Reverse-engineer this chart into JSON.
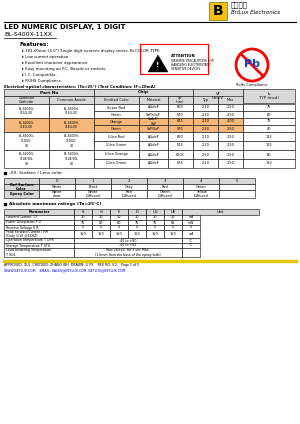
{
  "title": "LED NUMERIC DISPLAY, 1 DIGIT",
  "part_number": "BL-S400X-11XX",
  "company": "BriLux Electronics",
  "company_cn": "百沐光电",
  "features": [
    "101.60mm (4.0\") Single digit numeric display series, Bi-COLOR TYPE",
    "Low current operation.",
    "Excellent character appearance.",
    "Easy mounting on P.C. Boards or sockets.",
    "I.C. Compatible.",
    "ROHS Compliance."
  ],
  "elec_title": "Electrical-optical characteristics: (Ta=25°) (Test Condition: IF=20mA)",
  "lens_title": "-XX: Surface / Lens color",
  "abs_max_title": "Absolute maximum ratings (Ta=25°C)",
  "footer": "APPROVED: XUL  CHECKED: ZHANG WH  DRAWN: LI PS    REV NO: V.2    Page 1 of 5",
  "website": "WWW.BETLUX.COM    EMAIL: SALES@BETLUX.COM, BETLUX@BETLUX.COM",
  "bg_color": "#ffffff",
  "gray_bg": "#d8d8d8",
  "orange_bg": "#f5b87a",
  "yellow_bar": "#e8c800"
}
